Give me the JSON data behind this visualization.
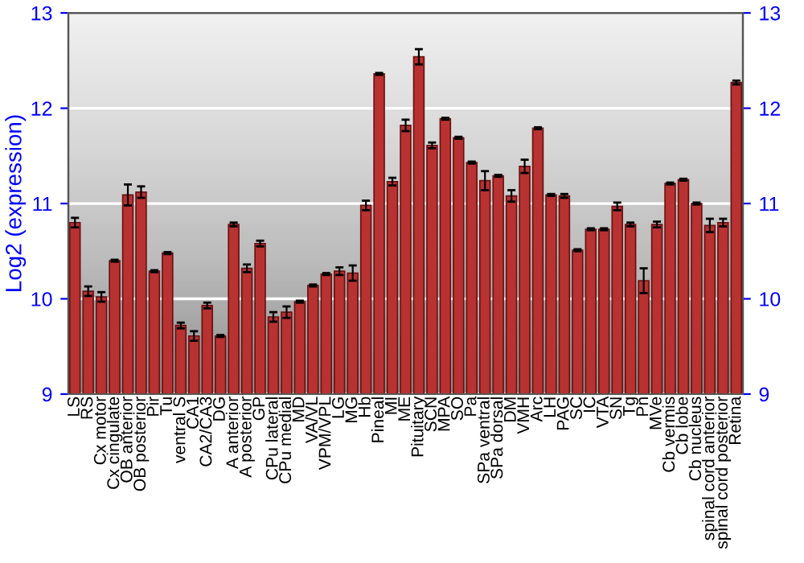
{
  "chart_data": {
    "type": "bar",
    "ylabel": "Log2 (expression)",
    "categories": [
      "LS",
      "RS",
      "Cx motor",
      "Cx cingulate",
      "OB anterior",
      "OB posterior",
      "Pir",
      "Tu",
      "ventral S",
      "CA1",
      "CA2/CA3",
      "DG",
      "A anterior",
      "A posterior",
      "GP",
      "CPu lateral",
      "CPu medial",
      "MD",
      "VA/VL",
      "VPM/VPL",
      "LG",
      "MG",
      "Hb",
      "Pineal",
      "MI",
      "ME",
      "Pituitary",
      "SCN",
      "MPA",
      "SO",
      "Pa",
      "SPa ventral",
      "SPa dorsal",
      "DM",
      "VMH",
      "Arc",
      "LH",
      "PAG",
      "SC",
      "IC",
      "VTA",
      "SN",
      "Tg",
      "Pn",
      "MVe",
      "Cb vermis",
      "Cb lobe",
      "Cb nucleus",
      "spinal cord anterior",
      "spinal cord posterior",
      "Retina"
    ],
    "values": [
      10.8,
      10.08,
      10.02,
      10.4,
      11.09,
      11.12,
      10.29,
      10.48,
      9.72,
      9.61,
      9.93,
      9.61,
      10.78,
      10.32,
      10.58,
      9.81,
      9.86,
      9.97,
      10.14,
      10.26,
      10.29,
      10.27,
      10.98,
      12.36,
      11.23,
      11.82,
      12.54,
      11.61,
      11.89,
      11.69,
      11.43,
      11.24,
      11.29,
      11.08,
      11.39,
      11.79,
      11.09,
      11.08,
      10.51,
      10.73,
      10.73,
      10.97,
      10.78,
      10.19,
      10.78,
      11.21,
      11.25,
      11.0,
      10.77,
      10.8,
      12.27
    ],
    "errors": [
      0.05,
      0.05,
      0.05,
      0.01,
      0.11,
      0.06,
      0.01,
      0.01,
      0.03,
      0.05,
      0.03,
      0.01,
      0.02,
      0.04,
      0.03,
      0.05,
      0.06,
      0.01,
      0.01,
      0.01,
      0.04,
      0.08,
      0.05,
      0.01,
      0.04,
      0.06,
      0.08,
      0.03,
      0.01,
      0.01,
      0.01,
      0.1,
      0.01,
      0.06,
      0.07,
      0.01,
      0.01,
      0.02,
      0.01,
      0.01,
      0.01,
      0.04,
      0.02,
      0.13,
      0.03,
      0.01,
      0.01,
      0.01,
      0.07,
      0.04,
      0.02
    ],
    "color": "#b83232",
    "ylim": [
      9,
      13
    ],
    "yticks": [
      9,
      10,
      11,
      12,
      13
    ],
    "y2lim": [
      9,
      13
    ],
    "y2ticks": [
      9,
      10,
      11,
      12,
      13
    ],
    "grid": "y"
  }
}
